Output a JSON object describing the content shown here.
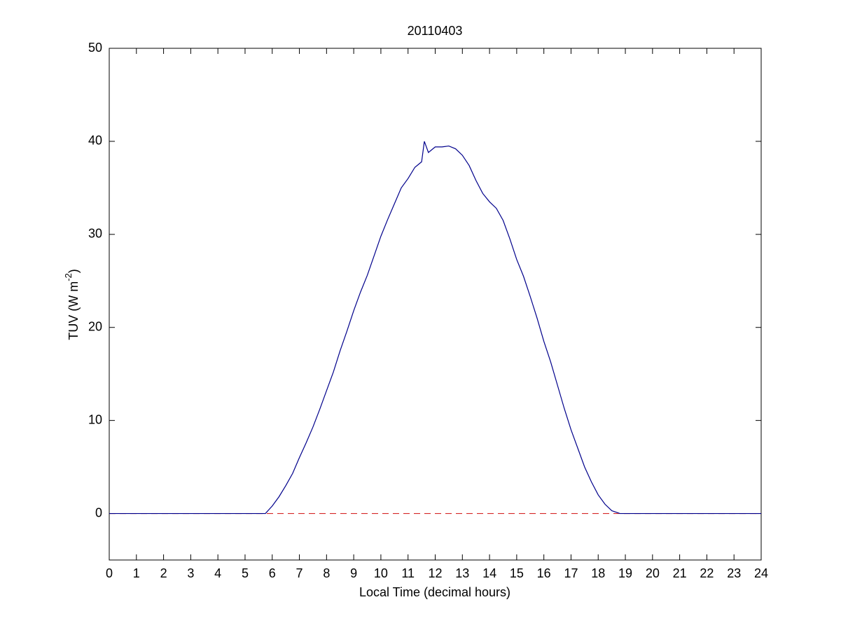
{
  "chart_data": {
    "type": "line",
    "title": "20110403",
    "xlabel": "Local Time (decimal hours)",
    "ylabel": {
      "text": "TUV (W m",
      "sup": "-2",
      "tail": ")"
    },
    "x": [
      0,
      5.75,
      6,
      6.25,
      6.5,
      6.75,
      7,
      7.25,
      7.5,
      7.75,
      8,
      8.25,
      8.5,
      8.75,
      9,
      9.25,
      9.5,
      9.75,
      10,
      10.25,
      10.5,
      10.75,
      11,
      11.25,
      11.5,
      11.6,
      11.75,
      12,
      12.25,
      12.5,
      12.75,
      13,
      13.25,
      13.5,
      13.75,
      14,
      14.25,
      14.5,
      14.75,
      15,
      15.25,
      15.5,
      15.75,
      16,
      16.25,
      16.5,
      16.75,
      17,
      17.25,
      17.5,
      17.75,
      18,
      18.25,
      18.5,
      18.8,
      24
    ],
    "series": [
      {
        "color": "#00008b",
        "values": [
          0,
          0,
          0.8,
          1.8,
          3.0,
          4.3,
          6.0,
          7.6,
          9.3,
          11.2,
          13.2,
          15.2,
          17.5,
          19.6,
          21.8,
          23.8,
          25.6,
          27.7,
          29.8,
          31.6,
          33.3,
          35.0,
          36.0,
          37.2,
          37.8,
          40.0,
          38.8,
          39.4,
          39.4,
          39.5,
          39.2,
          38.5,
          37.4,
          35.8,
          34.4,
          33.5,
          32.8,
          31.5,
          29.5,
          27.3,
          25.5,
          23.3,
          21.0,
          18.5,
          16.3,
          13.8,
          11.3,
          9.0,
          7.0,
          5.0,
          3.4,
          2.0,
          1.0,
          0.3,
          0,
          0
        ]
      }
    ],
    "reference_line": {
      "value": 0,
      "color": "#d62728",
      "dashed": true
    },
    "xlim": [
      0,
      24
    ],
    "xticks": [
      0,
      1,
      2,
      3,
      4,
      5,
      6,
      7,
      8,
      9,
      10,
      11,
      12,
      13,
      14,
      15,
      16,
      17,
      18,
      19,
      20,
      21,
      22,
      23,
      24
    ],
    "ylim": [
      -5,
      50
    ],
    "yticks": [
      0,
      10,
      20,
      30,
      40,
      50
    ],
    "grid": false
  }
}
